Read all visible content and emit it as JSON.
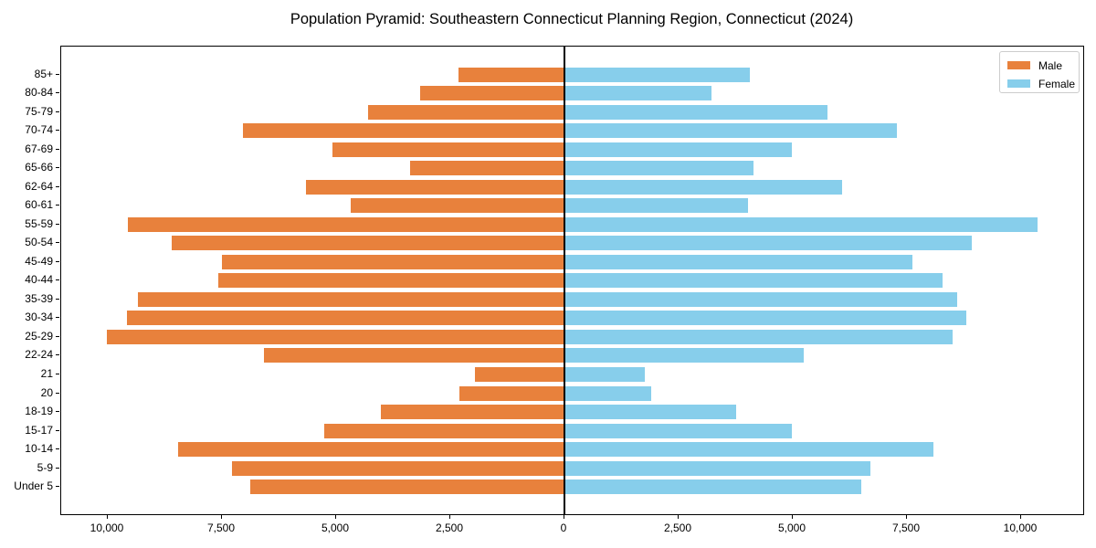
{
  "title": "Population Pyramid: Southeastern Connecticut Planning Region, Connecticut (2024)",
  "legend": {
    "male_label": "Male",
    "female_label": "Female",
    "position": "upper right"
  },
  "colors": {
    "male": "#e8813c",
    "female": "#87ceeb",
    "axis": "#000000",
    "legend_border": "#cccccc",
    "background": "#ffffff"
  },
  "chart_data": {
    "type": "bar",
    "orientation": "horizontal population pyramid",
    "title": "Population Pyramid: Southeastern Connecticut Planning Region, Connecticut (2024)",
    "categories": [
      "85+",
      "80-84",
      "75-79",
      "70-74",
      "67-69",
      "65-66",
      "62-64",
      "60-61",
      "55-59",
      "50-54",
      "45-49",
      "40-44",
      "35-39",
      "30-34",
      "25-29",
      "22-24",
      "21",
      "20",
      "18-19",
      "15-17",
      "10-14",
      "5-9",
      "Under 5"
    ],
    "series": [
      {
        "name": "Male",
        "side": "left",
        "color": "#e8813c",
        "values": [
          2310,
          3140,
          4290,
          7030,
          5070,
          3360,
          5640,
          4660,
          9540,
          8590,
          7490,
          7570,
          9330,
          9560,
          10010,
          6570,
          1950,
          2290,
          4010,
          5240,
          8440,
          7270,
          6870
        ]
      },
      {
        "name": "Female",
        "side": "right",
        "color": "#87ceeb",
        "values": [
          4050,
          3220,
          5750,
          7270,
          4980,
          4130,
          6080,
          4020,
          10350,
          8910,
          7620,
          8270,
          8600,
          8800,
          8500,
          5230,
          1750,
          1890,
          3750,
          4970,
          8070,
          6700,
          6500
        ]
      }
    ],
    "x_ticks": [
      {
        "value": -10000,
        "label": "10,000"
      },
      {
        "value": -7500,
        "label": "7,500"
      },
      {
        "value": -5000,
        "label": "5,000"
      },
      {
        "value": -2500,
        "label": "2,500"
      },
      {
        "value": 0,
        "label": "0"
      },
      {
        "value": 2500,
        "label": "2,500"
      },
      {
        "value": 5000,
        "label": "5,000"
      },
      {
        "value": 7500,
        "label": "7,500"
      },
      {
        "value": 10000,
        "label": "10,000"
      }
    ],
    "xlim": [
      -11020,
      11380
    ],
    "grid": false,
    "zero_axis_line": true
  }
}
